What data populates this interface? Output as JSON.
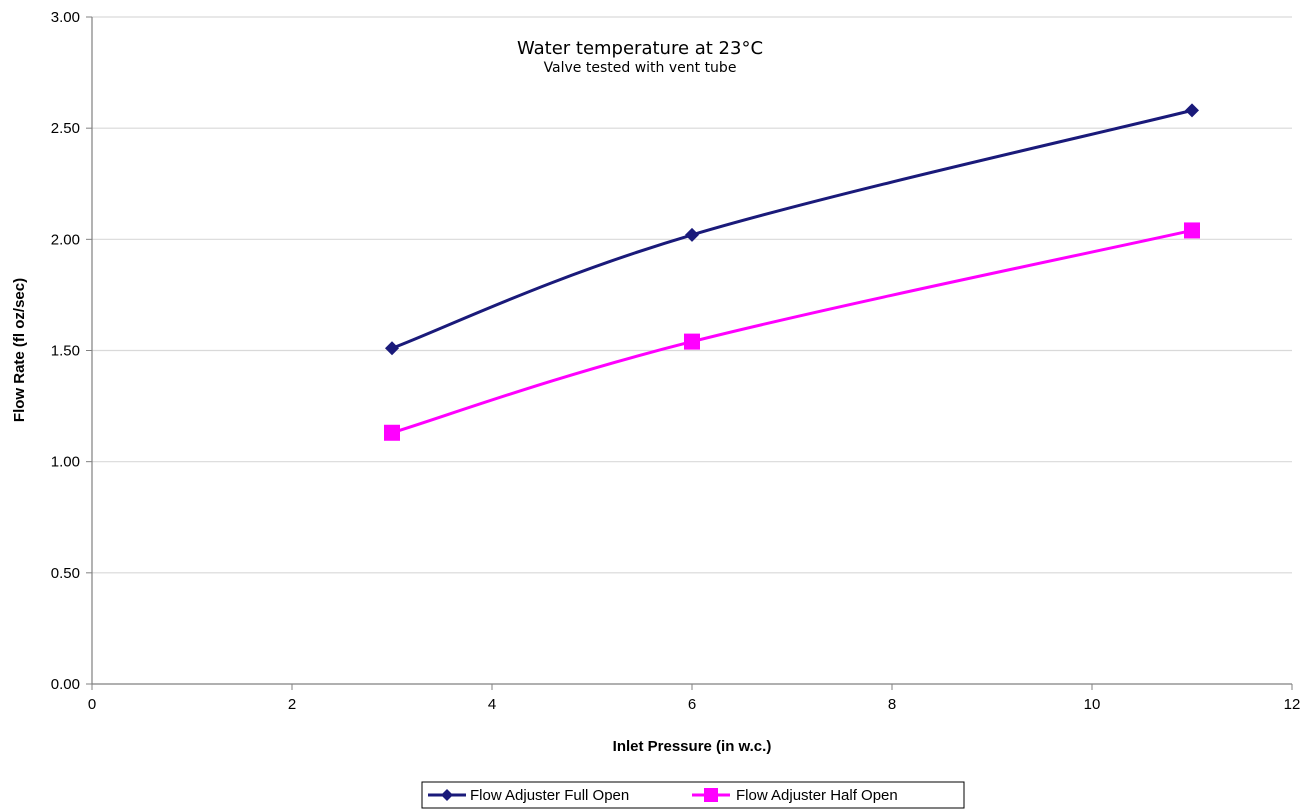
{
  "chart_data": {
    "type": "line",
    "title": "",
    "annotations": [
      "Water temperature at 23°C",
      "Valve tested with vent tube"
    ],
    "xlabel": "Inlet Pressure (in w.c.)",
    "ylabel": "Flow Rate (fl oz/sec)",
    "xlim": [
      0,
      12
    ],
    "ylim": [
      0,
      3
    ],
    "x_ticks": [
      "0",
      "2",
      "4",
      "6",
      "8",
      "10",
      "12"
    ],
    "y_ticks": [
      "0.00",
      "0.50",
      "1.00",
      "1.50",
      "2.00",
      "2.50",
      "3.00"
    ],
    "grid": "horizontal",
    "legend_position": "bottom",
    "series": [
      {
        "name": "Flow Adjuster Full Open",
        "color": "#1a1a7a",
        "marker": "diamond",
        "x": [
          3,
          6,
          11
        ],
        "y": [
          1.51,
          2.02,
          2.58
        ]
      },
      {
        "name": "Flow Adjuster Half Open",
        "color": "#ff00ff",
        "marker": "square",
        "x": [
          3,
          6,
          11
        ],
        "y": [
          1.13,
          1.54,
          2.04
        ]
      }
    ]
  }
}
